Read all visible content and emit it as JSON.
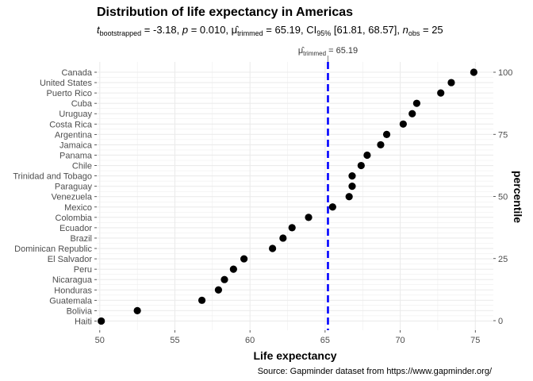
{
  "chart_data": {
    "type": "scatter",
    "title": "Distribution of life expectancy in Americas",
    "subtitle": {
      "t_label": "t",
      "t_sub": "bootstrapped",
      "t_value": " = -3.18, ",
      "p_label": "p",
      "p_value": " = 0.010, ",
      "mu_label": "μ̂",
      "mu_sub": "trimmed",
      "mu_value": " = 65.19, CI",
      "ci_sub": "95%",
      "ci_value": " [61.81, 68.57], ",
      "n_label": "n",
      "n_sub": "obs",
      "n_value": " = 25"
    },
    "xlabel": "Life expectancy",
    "ylabel_right": "percentile",
    "caption": "Source: Gapminder dataset from https://www.gapminder.org/",
    "xlim": [
      49.8,
      76.2
    ],
    "x_ticks": [
      50,
      55,
      60,
      65,
      70,
      75
    ],
    "x_tick_labels": [
      "50",
      "55",
      "60",
      "65",
      "70",
      "75"
    ],
    "y_right_ticks": [
      0,
      25,
      50,
      75,
      100
    ],
    "y_right_tick_labels": [
      "0",
      "25",
      "50",
      "75",
      "100"
    ],
    "grid": true,
    "countries": [
      "Haiti",
      "Bolivia",
      "Guatemala",
      "Honduras",
      "Nicaragua",
      "Peru",
      "El Salvador",
      "Dominican Republic",
      "Brazil",
      "Ecuador",
      "Colombia",
      "Mexico",
      "Venezuela",
      "Paraguay",
      "Trinidad and Tobago",
      "Chile",
      "Panama",
      "Jamaica",
      "Argentina",
      "Costa Rica",
      "Uruguay",
      "Cuba",
      "Puerto Rico",
      "United States",
      "Canada"
    ],
    "values": [
      50.1,
      52.5,
      56.8,
      57.9,
      58.3,
      58.9,
      59.6,
      61.5,
      62.2,
      62.8,
      63.9,
      65.5,
      66.6,
      66.8,
      66.8,
      67.4,
      67.8,
      68.7,
      69.1,
      70.2,
      70.8,
      71.1,
      72.7,
      73.4,
      74.9
    ],
    "mean_line": {
      "value": 65.19,
      "label_prefix": "μ̂",
      "label_sub": "trimmed",
      "label_suffix": " = 65.19",
      "color": "#0000ff"
    },
    "colors": {
      "point": "#000000",
      "grid": "#ebebeb",
      "tick_label": "#4d4d4d"
    }
  }
}
